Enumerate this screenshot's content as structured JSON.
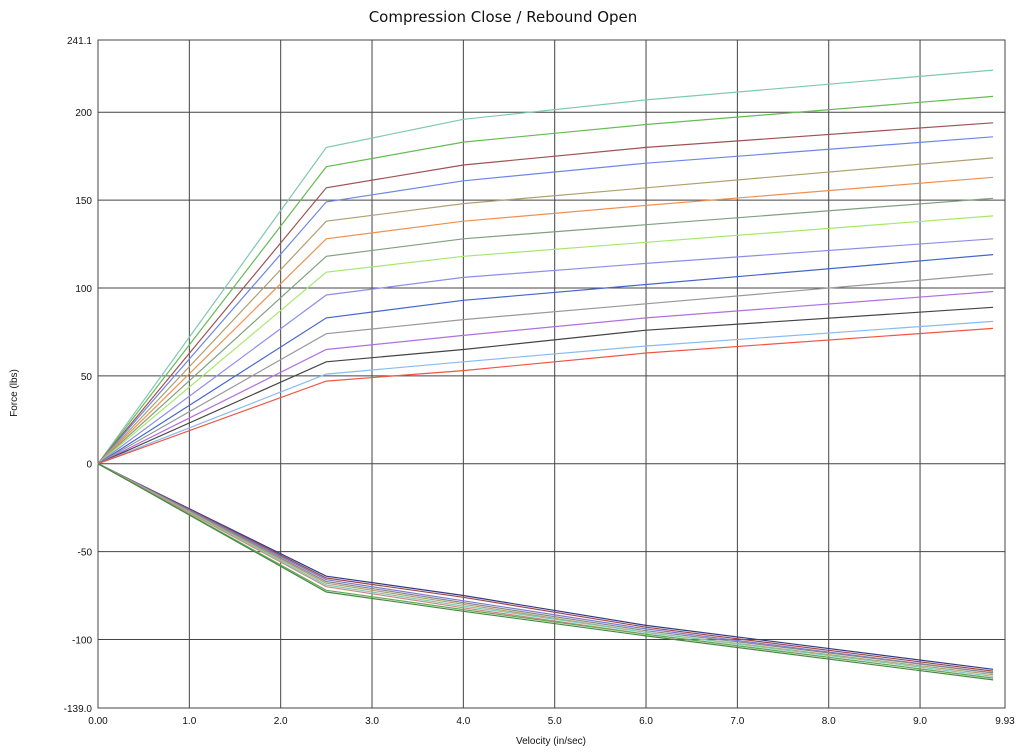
{
  "chart_data": {
    "type": "line",
    "title": "Compression Close / Rebound Open",
    "xlabel": "Velocity (in/sec)",
    "ylabel": "Force (lbs)",
    "xlim": [
      0,
      9.93
    ],
    "ylim": [
      -139.0,
      241.1
    ],
    "x_ticks": [
      0,
      1,
      2,
      3,
      4,
      5,
      6,
      7,
      8,
      9,
      9.93
    ],
    "x_tick_labels": [
      "0.00",
      "1.0",
      "2.0",
      "3.0",
      "4.0",
      "5.0",
      "6.0",
      "7.0",
      "8.0",
      "9.0",
      "9.93"
    ],
    "y_ticks": [
      -139.0,
      -100,
      -50,
      0,
      50,
      100,
      150,
      200,
      241.1
    ],
    "y_tick_labels": [
      "-139.0",
      "-100",
      "-50",
      "0",
      "50",
      "100",
      "150",
      "200",
      "241.1"
    ],
    "grid": true,
    "legend": "none",
    "x": [
      0,
      2.5,
      4,
      6,
      9.8
    ],
    "series": [
      {
        "color": "#7fc9b0",
        "values": [
          0,
          180,
          196,
          207,
          224
        ]
      },
      {
        "color": "#66bb55",
        "values": [
          0,
          169,
          183,
          193,
          209
        ]
      },
      {
        "color": "#a05252",
        "values": [
          0,
          157,
          170,
          180,
          194
        ]
      },
      {
        "color": "#6f86e8",
        "values": [
          0,
          149,
          161,
          171,
          186
        ]
      },
      {
        "color": "#b0a070",
        "values": [
          0,
          138,
          148,
          157,
          174
        ]
      },
      {
        "color": "#f09050",
        "values": [
          0,
          128,
          138,
          147,
          163
        ]
      },
      {
        "color": "#80a080",
        "values": [
          0,
          118,
          128,
          136,
          151
        ]
      },
      {
        "color": "#a6e86a",
        "values": [
          0,
          109,
          118,
          126,
          141
        ]
      },
      {
        "color": "#8e8ee8",
        "values": [
          0,
          96,
          106,
          114,
          128
        ]
      },
      {
        "color": "#4466cc",
        "values": [
          0,
          83,
          93,
          102,
          119
        ]
      },
      {
        "color": "#999999",
        "values": [
          0,
          74,
          82,
          91,
          108
        ]
      },
      {
        "color": "#b070e0",
        "values": [
          0,
          65,
          73,
          83,
          98
        ]
      },
      {
        "color": "#444444",
        "values": [
          0,
          58,
          65,
          76,
          89
        ]
      },
      {
        "color": "#88bbee",
        "values": [
          0,
          51,
          58,
          67,
          81
        ]
      },
      {
        "color": "#f05545",
        "values": [
          0,
          47,
          53,
          63,
          77
        ]
      },
      {
        "color": "#2f3a8a",
        "values": [
          0,
          -64,
          -75,
          -92,
          -117
        ]
      },
      {
        "color": "#a04848",
        "values": [
          0,
          -65,
          -76,
          -93,
          -118
        ]
      },
      {
        "color": "#7a7ad0",
        "values": [
          0,
          -66,
          -78,
          -94,
          -119
        ]
      },
      {
        "color": "#888888",
        "values": [
          0,
          -67,
          -79,
          -95,
          -119
        ]
      },
      {
        "color": "#b0a070",
        "values": [
          0,
          -68,
          -80,
          -96,
          -120
        ]
      },
      {
        "color": "#7fc9b0",
        "values": [
          0,
          -69,
          -81,
          -96,
          -121
        ]
      },
      {
        "color": "#cc8888",
        "values": [
          0,
          -70,
          -82,
          -97,
          -122
        ]
      },
      {
        "color": "#66aa55",
        "values": [
          0,
          -72,
          -83,
          -97,
          -122
        ]
      },
      {
        "color": "#448844",
        "values": [
          0,
          -73,
          -84,
          -98,
          -123
        ]
      }
    ]
  }
}
